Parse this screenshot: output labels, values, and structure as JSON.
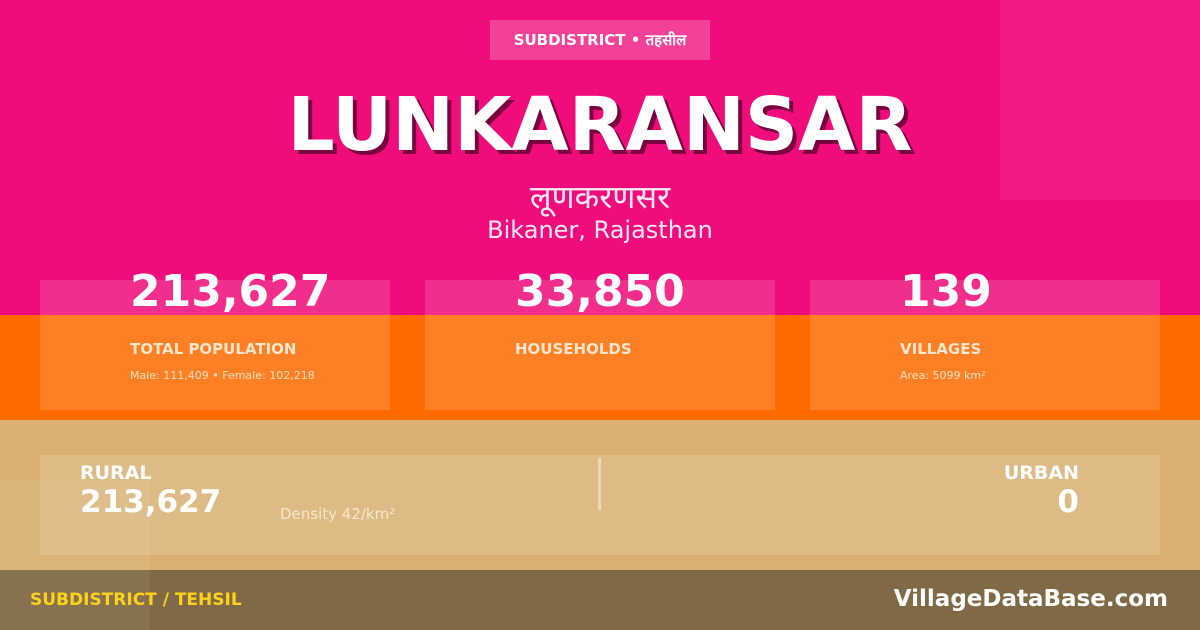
{
  "colors": {
    "pink": "#f00c7b",
    "orange": "#ff6a00",
    "tan": "#d9b070",
    "footer": "#7f6a45",
    "footer_label": "#ffd21a"
  },
  "badge": "SUBDISTRICT • तहसील",
  "title": "LUNKARANSAR",
  "title_hindi": "लूणकरणसर",
  "location": "Bikaner, Rajasthan",
  "stats": [
    {
      "value": "213,627",
      "label": "TOTAL POPULATION",
      "sub": "Male: 111,409 • Female: 102,218"
    },
    {
      "value": "33,850",
      "label": "HOUSEHOLDS",
      "sub": ""
    },
    {
      "value": "139",
      "label": "VILLAGES",
      "sub": "Area: 5099 km²"
    }
  ],
  "rural": {
    "label": "RURAL",
    "value": "213,627"
  },
  "density": "Density 42/km²",
  "urban": {
    "label": "URBAN",
    "value": "0"
  },
  "footer": {
    "left": "SUBDISTRICT / TEHSIL",
    "right": "VillageDataBase.com"
  }
}
